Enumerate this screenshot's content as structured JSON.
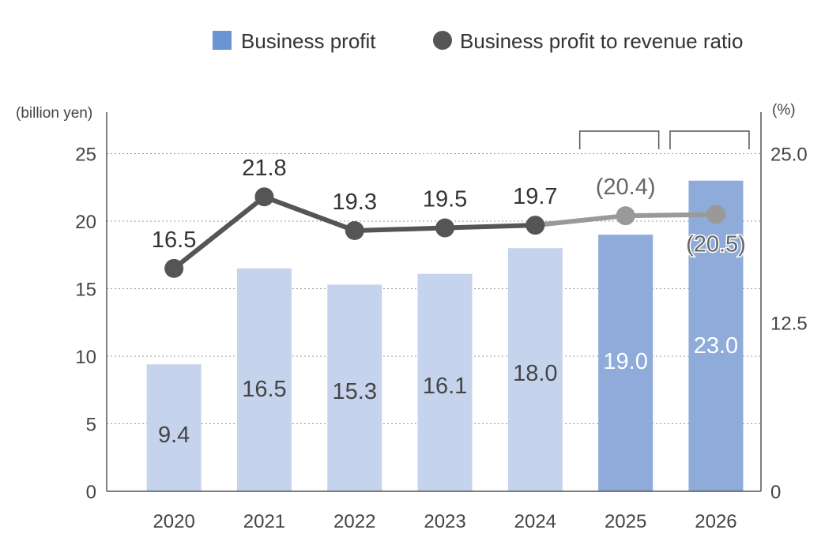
{
  "chart_data": {
    "type": "bar",
    "categories": [
      "2020",
      "2021",
      "2022",
      "2023",
      "2024",
      "2025",
      "2026"
    ],
    "series": [
      {
        "name": "Business profit",
        "axis": "left",
        "type": "bar",
        "values": [
          9.4,
          16.5,
          15.3,
          16.1,
          18.0,
          19.0,
          23.0
        ],
        "labels": [
          "9.4",
          "16.5",
          "15.3",
          "16.1",
          "18.0",
          "19.0",
          "23.0"
        ]
      },
      {
        "name": "Business profit to revenue ratio",
        "axis": "right",
        "type": "line",
        "values": [
          16.5,
          21.8,
          19.3,
          19.5,
          19.7,
          20.4,
          20.5
        ],
        "labels": [
          "16.5",
          "21.8",
          "19.3",
          "19.5",
          "19.7",
          "(20.4)",
          "(20.5)"
        ]
      }
    ],
    "forecast_categories": [
      "2025",
      "2026"
    ],
    "y_left": {
      "unit": "(billion yen)",
      "ticks": [
        "0",
        "5",
        "10",
        "15",
        "20",
        "25"
      ],
      "range": [
        0,
        28
      ]
    },
    "y_right": {
      "unit": "(%)",
      "ticks": [
        "0",
        "12.5",
        "25.0"
      ],
      "range": [
        0,
        28
      ]
    },
    "grid": true,
    "legend": "top-right",
    "colors": {
      "bar_actual": "#c5d3ec",
      "bar_forecast": "#8eabda",
      "legend_bar": "#6a94d3",
      "line_actual": "#555555",
      "line_forecast": "#999999",
      "axis": "#555555",
      "grid": "#999999",
      "label_on_light": "#444444",
      "label_on_dark": "#ffffff"
    }
  }
}
